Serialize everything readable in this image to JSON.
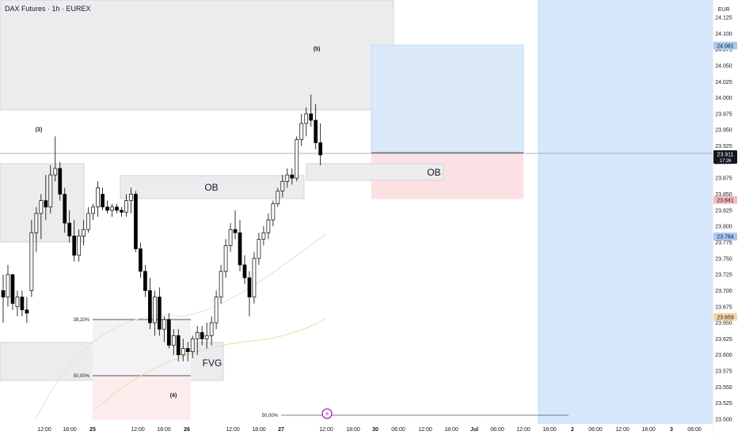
{
  "header": {
    "title": "DAX Futures · 1h · EUREX"
  },
  "currency": "EUR",
  "colors": {
    "zone_gray": "#cfd0d6",
    "target_blue": "#bbd7f5",
    "stop_red": "#f6c9cc",
    "future_blue": "#d6e6fb",
    "candle_up": "#ffffff",
    "candle_down": "#000000",
    "badge_price": "#131722",
    "badge_blue": "#a9c9f2",
    "badge_red": "#f4bcc0",
    "badge_orange": "#f6d6a8",
    "ma_long": "#f2d9a5",
    "ma_short": "#cfe3c4",
    "crosshair": "#9598a1",
    "alert_icon": "#9c27b0"
  },
  "chart_data": {
    "type": "candlestick",
    "title": "DAX Futures · 1h · EUREX",
    "ylim": [
      23500,
      24125
    ],
    "y_ticks": [
      "23.500",
      "23.525",
      "23.550",
      "23.575",
      "23.600",
      "23.625",
      "23.650",
      "23.675",
      "23.700",
      "23.725",
      "23.750",
      "23.775",
      "23.800",
      "23.825",
      "23.850",
      "23.875",
      "23.900",
      "23.925",
      "23.950",
      "23.975",
      "24.000",
      "24.025",
      "24.050",
      "24.075",
      "24.100",
      "24.125"
    ],
    "x_ticks": [
      "12:00",
      "18:00",
      "25",
      "12:00",
      "18:00",
      "26",
      "12:00",
      "18:00",
      "27",
      "12:00",
      "18:00",
      "30",
      "06:00",
      "12:00",
      "18:00",
      "Jul",
      "06:00",
      "12:00",
      "18:00",
      "2",
      "06:00",
      "12:00",
      "18:00",
      "3",
      "06:00"
    ],
    "price_badges": [
      {
        "label": "24.081",
        "value": 24081,
        "style": "blue"
      },
      {
        "label": "23.911",
        "sublabel": "17:26",
        "value": 23911,
        "style": "price"
      },
      {
        "label": "23.841",
        "value": 23841,
        "style": "red"
      },
      {
        "label": "23.784",
        "value": 23784,
        "style": "blue"
      },
      {
        "label": "23.659",
        "value": 23659,
        "style": "orange"
      }
    ],
    "candles": [
      [
        23700,
        23725,
        23650,
        23690
      ],
      [
        23690,
        23740,
        23675,
        23725
      ],
      [
        23725,
        23725,
        23670,
        23680
      ],
      [
        23675,
        23700,
        23660,
        23690
      ],
      [
        23690,
        23700,
        23660,
        23670
      ],
      [
        23670,
        23690,
        23650,
        23665
      ],
      [
        23700,
        23810,
        23690,
        23790
      ],
      [
        23790,
        23830,
        23760,
        23820
      ],
      [
        23820,
        23850,
        23780,
        23840
      ],
      [
        23840,
        23880,
        23810,
        23830
      ],
      [
        23830,
        23895,
        23820,
        23880
      ],
      [
        23880,
        23940,
        23870,
        23890
      ],
      [
        23890,
        23900,
        23840,
        23850
      ],
      [
        23850,
        23860,
        23790,
        23805
      ],
      [
        23805,
        23825,
        23775,
        23785
      ],
      [
        23785,
        23810,
        23745,
        23755
      ],
      [
        23755,
        23795,
        23745,
        23785
      ],
      [
        23785,
        23810,
        23770,
        23795
      ],
      [
        23795,
        23830,
        23790,
        23820
      ],
      [
        23820,
        23835,
        23810,
        23830
      ],
      [
        23830,
        23870,
        23815,
        23860
      ],
      [
        23850,
        23860,
        23825,
        23830
      ],
      [
        23830,
        23840,
        23820,
        23825
      ],
      [
        23825,
        23835,
        23815,
        23830
      ],
      [
        23830,
        23835,
        23820,
        23825
      ],
      [
        23825,
        23830,
        23815,
        23822
      ],
      [
        23822,
        23850,
        23815,
        23840
      ],
      [
        23840,
        23860,
        23820,
        23850
      ],
      [
        23850,
        23855,
        23760,
        23765
      ],
      [
        23765,
        23775,
        23720,
        23730
      ],
      [
        23730,
        23740,
        23690,
        23700
      ],
      [
        23700,
        23720,
        23640,
        23650
      ],
      [
        23650,
        23700,
        23630,
        23690
      ],
      [
        23690,
        23705,
        23630,
        23640
      ],
      [
        23640,
        23660,
        23620,
        23655
      ],
      [
        23655,
        23665,
        23610,
        23615
      ],
      [
        23615,
        23640,
        23600,
        23630
      ],
      [
        23630,
        23640,
        23590,
        23600
      ],
      [
        23600,
        23625,
        23590,
        23610
      ],
      [
        23610,
        23620,
        23590,
        23605
      ],
      [
        23605,
        23630,
        23595,
        23625
      ],
      [
        23625,
        23645,
        23600,
        23635
      ],
      [
        23635,
        23645,
        23615,
        23625
      ],
      [
        23625,
        23650,
        23610,
        23630
      ],
      [
        23630,
        23660,
        23615,
        23650
      ],
      [
        23650,
        23700,
        23640,
        23690
      ],
      [
        23690,
        23740,
        23680,
        23730
      ],
      [
        23730,
        23780,
        23720,
        23770
      ],
      [
        23770,
        23805,
        23760,
        23795
      ],
      [
        23795,
        23825,
        23780,
        23790
      ],
      [
        23790,
        23810,
        23730,
        23740
      ],
      [
        23740,
        23755,
        23710,
        23720
      ],
      [
        23720,
        23730,
        23660,
        23690
      ],
      [
        23690,
        23760,
        23680,
        23750
      ],
      [
        23750,
        23790,
        23740,
        23780
      ],
      [
        23780,
        23800,
        23770,
        23790
      ],
      [
        23790,
        23820,
        23780,
        23810
      ],
      [
        23810,
        23840,
        23800,
        23835
      ],
      [
        23835,
        23860,
        23830,
        23855
      ],
      [
        23855,
        23880,
        23845,
        23870
      ],
      [
        23870,
        23890,
        23860,
        23880
      ],
      [
        23880,
        23890,
        23865,
        23875
      ],
      [
        23875,
        23940,
        23870,
        23935
      ],
      [
        23935,
        23975,
        23925,
        23960
      ],
      [
        23960,
        23985,
        23940,
        23975
      ],
      [
        23975,
        24005,
        23955,
        23965
      ],
      [
        23965,
        23990,
        23920,
        23930
      ],
      [
        23930,
        23960,
        23895,
        23911
      ]
    ],
    "annotations": [
      {
        "label": "(3)"
      },
      {
        "label": "(4)"
      },
      {
        "label": "(5)"
      },
      {
        "label": "OB"
      },
      {
        "label": "OB"
      },
      {
        "label": "FVG"
      },
      {
        "label": "38,20%"
      },
      {
        "label": "50,00%"
      },
      {
        "label": "50,00%"
      }
    ]
  }
}
